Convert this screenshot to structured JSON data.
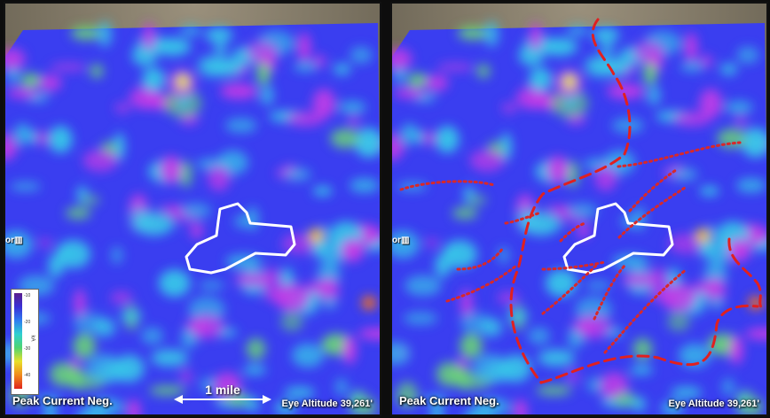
{
  "left_panel": {
    "title": "Peak Current Neg.",
    "marker_label": "or",
    "scale_label": "1 mile"
  },
  "right_panel": {
    "title": "Peak Current Neg.",
    "marker_label": "or",
    "altitude": "Eye Altitude 39,261'"
  },
  "left_altitude": "Eye Altitude 39,261'",
  "legend": {
    "ticks": [
      "-10",
      "-20",
      "-30",
      "-40"
    ],
    "unit": "kA"
  },
  "colors": {
    "outline": "#ffffff",
    "dashed_line": "#e02020",
    "dotted_line": "#e02020",
    "base_blue": "#3c3cf2",
    "magenta": "#c83ce6",
    "cyan": "#38c8e8",
    "green": "#6ad478",
    "terrain": "#8a8170"
  }
}
